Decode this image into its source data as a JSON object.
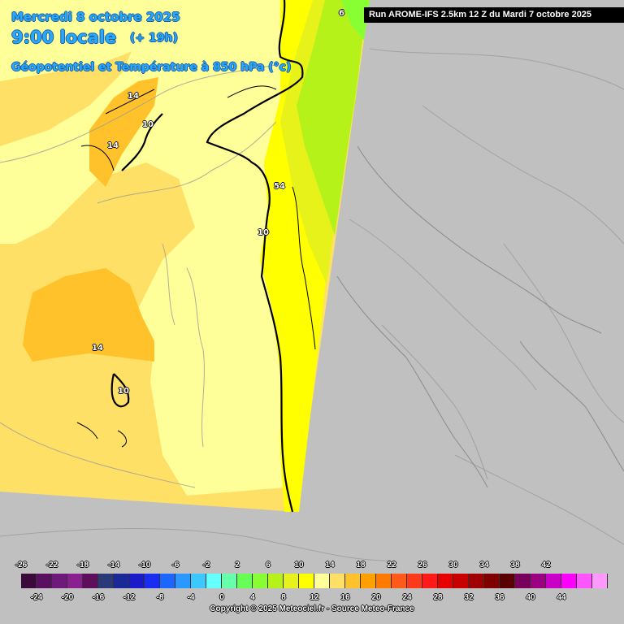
{
  "header": {
    "date": "Mercredi 8 octobre 2025",
    "time": "9:00 locale",
    "lead": "(+ 19h)",
    "parameter": "Géopotentiel et Température à 850 hPa (°c)"
  },
  "run_info": "Run AROME-IFS 2.5km 12 Z du Mardi 7 octobre 2025",
  "contour_labels": [
    "14",
    "10",
    "14",
    "54",
    "10",
    "14",
    "10",
    "6"
  ],
  "scale": {
    "upper_labels": [
      "-26",
      "-22",
      "-18",
      "-14",
      "-10",
      "-6",
      "-2",
      "2",
      "6",
      "10",
      "14",
      "18",
      "22",
      "26",
      "30",
      "34",
      "38",
      "42"
    ],
    "lower_labels": [
      "-24",
      "-20",
      "-16",
      "-12",
      "-8",
      "-4",
      "0",
      "4",
      "8",
      "12",
      "16",
      "20",
      "24",
      "28",
      "32",
      "36",
      "40",
      "44"
    ],
    "colors": [
      "#3a0a3a",
      "#5a1060",
      "#6e1a7a",
      "#8a2090",
      "#5e0f5a",
      "#2a3a78",
      "#1a2898",
      "#1a1ac8",
      "#1a2cf0",
      "#1a66ff",
      "#2a98ff",
      "#3cc8ff",
      "#66ffff",
      "#66ffaa",
      "#66ff55",
      "#88ff33",
      "#b4f21a",
      "#e6f21a",
      "#ffff00",
      "#ffff99",
      "#ffe066",
      "#ffc22a",
      "#ffa000",
      "#ff7a00",
      "#ff5a1a",
      "#ff3a1a",
      "#ff1a1a",
      "#e60000",
      "#c80000",
      "#a00000",
      "#800000",
      "#5a0000",
      "#78005a",
      "#9a0080",
      "#c800c8",
      "#ff00ff",
      "#ff55ff",
      "#ff99ff"
    ]
  },
  "copyright": "Copyright © 2025 Meteociel.fr - Source Meteo-France",
  "colors": {
    "sea_bg": "#c0c0c0",
    "t12_14": "#ffe066",
    "t10_12": "#ffff99",
    "t8_10": "#ffff00",
    "t6_8": "#e6f21a",
    "t4_6": "#b4f21a",
    "t14_16": "#ffc22a",
    "title": "#29a8ff"
  }
}
